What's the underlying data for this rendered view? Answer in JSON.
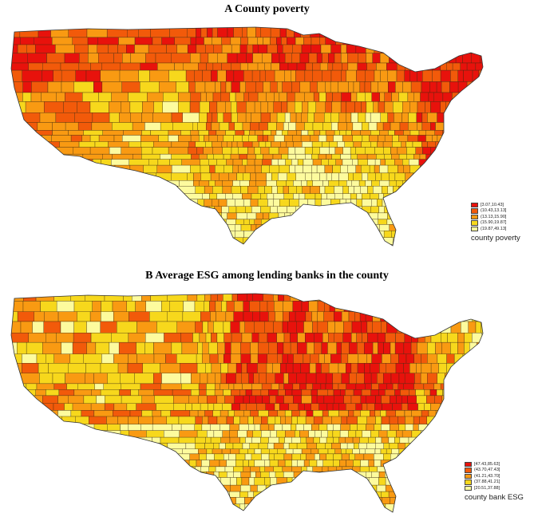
{
  "panel_a": {
    "title": "A  County poverty",
    "legend": {
      "title": "county poverty",
      "bins": [
        {
          "label": "[3.07,10.43]",
          "color": "#e8120c"
        },
        {
          "label": "(10.43,13.13]",
          "color": "#f25a0a"
        },
        {
          "label": "(13.13,15.90]",
          "color": "#f99a12"
        },
        {
          "label": "(15.90,19.87]",
          "color": "#f7d81c"
        },
        {
          "label": "(19.87,49.13]",
          "color": "#fdfb9e"
        }
      ]
    }
  },
  "panel_b": {
    "title": "B  Average ESG among lending banks in the county",
    "legend": {
      "title": "county bank ESG",
      "bins": [
        {
          "label": "[47.43,85.63]",
          "color": "#e8120c"
        },
        {
          "label": "(43.70,47.43]",
          "color": "#f25a0a"
        },
        {
          "label": "(41.21,43.70]",
          "color": "#f99a12"
        },
        {
          "label": "(37.88,41.21]",
          "color": "#f7d81c"
        },
        {
          "label": "[20.51,37.88]",
          "color": "#fdfb9e"
        }
      ]
    }
  }
}
